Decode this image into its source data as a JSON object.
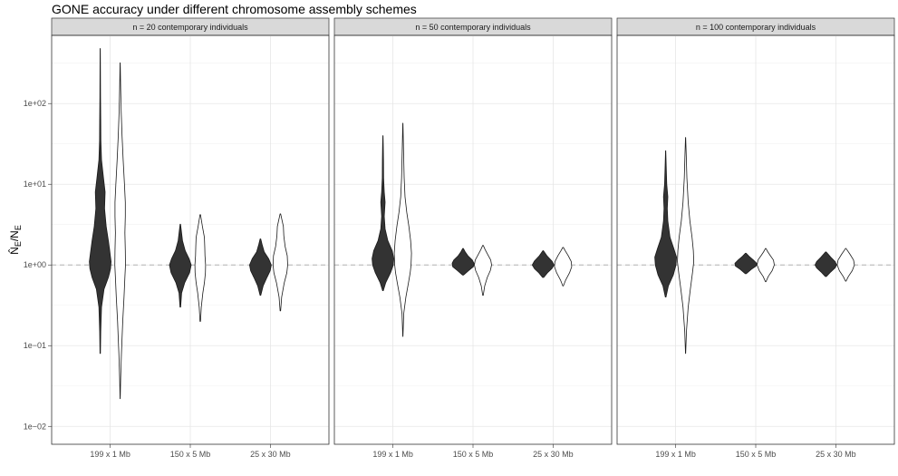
{
  "chart_data": {
    "type": "violin",
    "title": "GONE accuracy under different chromosome assembly schemes",
    "ylabel": "N̂E/NE",
    "yscale": "log10",
    "ylim": [
      0.006,
      700
    ],
    "yticks": [
      0.01,
      0.1,
      1,
      10,
      100
    ],
    "ytick_labels": [
      "1e−02",
      "1e−01",
      "1e+00",
      "1e+01",
      "1e+02"
    ],
    "reference_line": 1,
    "categories": [
      "199 x 1 Mb",
      "150 x 5 Mb",
      "25 x 30 Mb"
    ],
    "fill_colors": [
      "#333333",
      "#ffffff"
    ],
    "panels": [
      {
        "label": "n = 20 contemporary individuals",
        "groups": [
          {
            "category": "199 x 1 Mb",
            "filled": {
              "min": 0.08,
              "max": 480,
              "profile": [
                [
                  0.08,
                  0.02
                ],
                [
                  0.15,
                  0.05
                ],
                [
                  0.3,
                  0.12
                ],
                [
                  0.5,
                  0.35
                ],
                [
                  0.7,
                  0.75
                ],
                [
                  0.9,
                  0.95
                ],
                [
                  1.1,
                  1.0
                ],
                [
                  1.4,
                  0.9
                ],
                [
                  2,
                  0.75
                ],
                [
                  3,
                  0.55
                ],
                [
                  5,
                  0.4
                ],
                [
                  8,
                  0.45
                ],
                [
                  12,
                  0.3
                ],
                [
                  20,
                  0.12
                ],
                [
                  35,
                  0.06
                ],
                [
                  60,
                  0.05
                ],
                [
                  120,
                  0.03
                ],
                [
                  250,
                  0.02
                ],
                [
                  480,
                  0.01
                ]
              ]
            },
            "outline": {
              "min": 0.022,
              "max": 320,
              "profile": [
                [
                  0.022,
                  0.01
                ],
                [
                  0.04,
                  0.06
                ],
                [
                  0.08,
                  0.15
                ],
                [
                  0.2,
                  0.3
                ],
                [
                  0.4,
                  0.45
                ],
                [
                  0.7,
                  0.55
                ],
                [
                  1,
                  0.62
                ],
                [
                  1.5,
                  0.6
                ],
                [
                  2.5,
                  0.55
                ],
                [
                  4,
                  0.6
                ],
                [
                  6,
                  0.6
                ],
                [
                  10,
                  0.5
                ],
                [
                  20,
                  0.35
                ],
                [
                  40,
                  0.22
                ],
                [
                  80,
                  0.12
                ],
                [
                  150,
                  0.06
                ],
                [
                  320,
                  0.01
                ]
              ]
            }
          },
          {
            "category": "150 x 5 Mb",
            "filled": {
              "min": 0.3,
              "max": 3.2,
              "profile": [
                [
                  0.3,
                  0.03
                ],
                [
                  0.45,
                  0.12
                ],
                [
                  0.6,
                  0.4
                ],
                [
                  0.8,
                  0.85
                ],
                [
                  1.0,
                  1.0
                ],
                [
                  1.2,
                  0.8
                ],
                [
                  1.5,
                  0.45
                ],
                [
                  2.0,
                  0.2
                ],
                [
                  2.6,
                  0.1
                ],
                [
                  3.2,
                  0.02
                ]
              ]
            },
            "outline": {
              "min": 0.2,
              "max": 4.2,
              "profile": [
                [
                  0.2,
                  0.03
                ],
                [
                  0.3,
                  0.12
                ],
                [
                  0.45,
                  0.3
                ],
                [
                  0.6,
                  0.48
                ],
                [
                  0.8,
                  0.6
                ],
                [
                  1.0,
                  0.62
                ],
                [
                  1.3,
                  0.55
                ],
                [
                  1.7,
                  0.52
                ],
                [
                  2.2,
                  0.48
                ],
                [
                  3.0,
                  0.25
                ],
                [
                  4.2,
                  0.03
                ]
              ]
            }
          },
          {
            "category": "25 x 30 Mb",
            "filled": {
              "min": 0.42,
              "max": 2.1,
              "profile": [
                [
                  0.42,
                  0.03
                ],
                [
                  0.55,
                  0.25
                ],
                [
                  0.7,
                  0.6
                ],
                [
                  0.85,
                  0.9
                ],
                [
                  1.0,
                  1.0
                ],
                [
                  1.2,
                  0.75
                ],
                [
                  1.45,
                  0.35
                ],
                [
                  1.8,
                  0.15
                ],
                [
                  2.1,
                  0.03
                ]
              ]
            },
            "outline": {
              "min": 0.27,
              "max": 4.3,
              "profile": [
                [
                  0.27,
                  0.03
                ],
                [
                  0.4,
                  0.15
                ],
                [
                  0.6,
                  0.45
                ],
                [
                  0.8,
                  0.75
                ],
                [
                  1.0,
                  0.85
                ],
                [
                  1.3,
                  0.8
                ],
                [
                  1.7,
                  0.55
                ],
                [
                  2.3,
                  0.4
                ],
                [
                  3.0,
                  0.35
                ],
                [
                  4.3,
                  0.03
                ]
              ]
            }
          }
        ]
      },
      {
        "label": "n = 50 contemporary individuals",
        "groups": [
          {
            "category": "199 x 1 Mb",
            "filled": {
              "min": 0.48,
              "max": 40,
              "profile": [
                [
                  0.48,
                  0.03
                ],
                [
                  0.6,
                  0.25
                ],
                [
                  0.8,
                  0.7
                ],
                [
                  1.0,
                  0.95
                ],
                [
                  1.2,
                  1.0
                ],
                [
                  1.5,
                  0.85
                ],
                [
                  2.0,
                  0.45
                ],
                [
                  2.8,
                  0.2
                ],
                [
                  4,
                  0.12
                ],
                [
                  6,
                  0.2
                ],
                [
                  8,
                  0.12
                ],
                [
                  12,
                  0.06
                ],
                [
                  20,
                  0.05
                ],
                [
                  30,
                  0.03
                ],
                [
                  40,
                  0.01
                ]
              ]
            },
            "outline": {
              "min": 0.13,
              "max": 57,
              "profile": [
                [
                  0.13,
                  0.01
                ],
                [
                  0.25,
                  0.1
                ],
                [
                  0.4,
                  0.35
                ],
                [
                  0.6,
                  0.65
                ],
                [
                  0.8,
                  0.85
                ],
                [
                  1.0,
                  0.95
                ],
                [
                  1.4,
                  1.0
                ],
                [
                  2,
                  0.9
                ],
                [
                  3,
                  0.7
                ],
                [
                  4.5,
                  0.45
                ],
                [
                  7,
                  0.25
                ],
                [
                  12,
                  0.15
                ],
                [
                  25,
                  0.08
                ],
                [
                  57,
                  0.01
                ]
              ]
            }
          },
          {
            "category": "150 x 5 Mb",
            "filled": {
              "min": 0.75,
              "max": 1.6,
              "profile": [
                [
                  0.75,
                  0.05
                ],
                [
                  0.85,
                  0.5
                ],
                [
                  0.95,
                  0.95
                ],
                [
                  1.05,
                  1.0
                ],
                [
                  1.15,
                  0.85
                ],
                [
                  1.3,
                  0.45
                ],
                [
                  1.45,
                  0.2
                ],
                [
                  1.6,
                  0.03
                ]
              ]
            },
            "outline": {
              "min": 0.42,
              "max": 1.75,
              "profile": [
                [
                  0.42,
                  0.03
                ],
                [
                  0.55,
                  0.2
                ],
                [
                  0.7,
                  0.5
                ],
                [
                  0.85,
                  0.85
                ],
                [
                  1.0,
                  1.0
                ],
                [
                  1.15,
                  0.9
                ],
                [
                  1.35,
                  0.55
                ],
                [
                  1.55,
                  0.25
                ],
                [
                  1.75,
                  0.03
                ]
              ]
            }
          },
          {
            "category": "25 x 30 Mb",
            "filled": {
              "min": 0.7,
              "max": 1.5,
              "profile": [
                [
                  0.7,
                  0.05
                ],
                [
                  0.8,
                  0.4
                ],
                [
                  0.9,
                  0.8
                ],
                [
                  1.0,
                  1.0
                ],
                [
                  1.12,
                  0.8
                ],
                [
                  1.3,
                  0.35
                ],
                [
                  1.5,
                  0.03
                ]
              ]
            },
            "outline": {
              "min": 0.55,
              "max": 1.65,
              "profile": [
                [
                  0.55,
                  0.03
                ],
                [
                  0.65,
                  0.3
                ],
                [
                  0.8,
                  0.75
                ],
                [
                  0.95,
                  1.0
                ],
                [
                  1.1,
                  0.95
                ],
                [
                  1.3,
                  0.6
                ],
                [
                  1.5,
                  0.25
                ],
                [
                  1.65,
                  0.03
                ]
              ]
            }
          }
        ]
      },
      {
        "label": "n = 100 contemporary individuals",
        "groups": [
          {
            "category": "199 x 1 Mb",
            "filled": {
              "min": 0.4,
              "max": 26,
              "profile": [
                [
                  0.4,
                  0.03
                ],
                [
                  0.55,
                  0.25
                ],
                [
                  0.75,
                  0.7
                ],
                [
                  1.0,
                  0.95
                ],
                [
                  1.25,
                  1.0
                ],
                [
                  1.6,
                  0.75
                ],
                [
                  2.2,
                  0.4
                ],
                [
                  3.5,
                  0.2
                ],
                [
                  5,
                  0.15
                ],
                [
                  7,
                  0.2
                ],
                [
                  10,
                  0.1
                ],
                [
                  15,
                  0.06
                ],
                [
                  26,
                  0.01
                ]
              ]
            },
            "outline": {
              "min": 0.08,
              "max": 38,
              "profile": [
                [
                  0.08,
                  0.01
                ],
                [
                  0.15,
                  0.1
                ],
                [
                  0.3,
                  0.3
                ],
                [
                  0.5,
                  0.55
                ],
                [
                  0.8,
                  0.8
                ],
                [
                  1.1,
                  0.95
                ],
                [
                  1.5,
                  0.9
                ],
                [
                  2.2,
                  0.75
                ],
                [
                  3.5,
                  0.5
                ],
                [
                  6,
                  0.3
                ],
                [
                  12,
                  0.15
                ],
                [
                  22,
                  0.08
                ],
                [
                  38,
                  0.01
                ]
              ]
            }
          },
          {
            "category": "150 x 5 Mb",
            "filled": {
              "min": 0.78,
              "max": 1.4,
              "profile": [
                [
                  0.78,
                  0.05
                ],
                [
                  0.88,
                  0.5
                ],
                [
                  0.97,
                  0.95
                ],
                [
                  1.05,
                  1.0
                ],
                [
                  1.15,
                  0.7
                ],
                [
                  1.28,
                  0.3
                ],
                [
                  1.4,
                  0.03
                ]
              ]
            },
            "outline": {
              "min": 0.62,
              "max": 1.6,
              "profile": [
                [
                  0.62,
                  0.03
                ],
                [
                  0.72,
                  0.3
                ],
                [
                  0.85,
                  0.75
                ],
                [
                  1.0,
                  1.0
                ],
                [
                  1.15,
                  0.9
                ],
                [
                  1.3,
                  0.55
                ],
                [
                  1.45,
                  0.25
                ],
                [
                  1.6,
                  0.03
                ]
              ]
            }
          },
          {
            "category": "25 x 30 Mb",
            "filled": {
              "min": 0.72,
              "max": 1.45,
              "profile": [
                [
                  0.72,
                  0.05
                ],
                [
                  0.82,
                  0.45
                ],
                [
                  0.92,
                  0.85
                ],
                [
                  1.0,
                  1.0
                ],
                [
                  1.1,
                  0.85
                ],
                [
                  1.25,
                  0.45
                ],
                [
                  1.45,
                  0.03
                ]
              ]
            },
            "outline": {
              "min": 0.63,
              "max": 1.6,
              "profile": [
                [
                  0.63,
                  0.03
                ],
                [
                  0.72,
                  0.3
                ],
                [
                  0.85,
                  0.75
                ],
                [
                  1.0,
                  1.0
                ],
                [
                  1.15,
                  0.9
                ],
                [
                  1.35,
                  0.5
                ],
                [
                  1.6,
                  0.03
                ]
              ]
            }
          }
        ]
      }
    ]
  }
}
